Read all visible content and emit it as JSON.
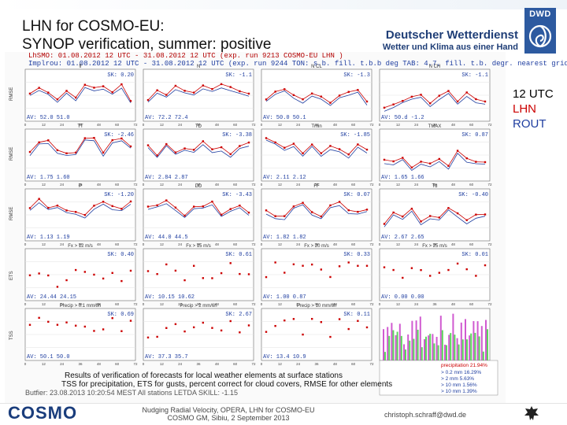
{
  "title": "LHN for COSMO-EU:\nSYNOP verification, summer:  positive",
  "brand": {
    "name": "Deutscher Wetterdienst",
    "tagline": "Wetter und Klima aus einer Hand",
    "logo_text": "DWD"
  },
  "legend": [
    {
      "text": "12 UTC",
      "color": "#000000"
    },
    {
      "text": "LHN",
      "color": "#cc0000"
    },
    {
      "text": "ROUT",
      "color": "#1f3ea0"
    }
  ],
  "run_lines": [
    "LhSMO: 01.08.2012 12 UTC - 31.08.2012 12 UTC (exp. run 9213   COSMO-EU LHN )",
    "Implrou: 01.08.2012 12 UTC - 31.08.2012 12 UTC (exp. run 9244 TON: s.b. fill. t.b.b deg TAB: 4.7, fill. t.b. degr. nearest gridpoint)"
  ],
  "panel_titles": [
    [
      "ff",
      "N",
      "N CL",
      "N CH"
    ],
    [
      "TT",
      "TD",
      "Tmin",
      "TMAX"
    ],
    [
      "P",
      "DD",
      "FF",
      "Td"
    ],
    [
      "Fx > 12 m/s",
      "Fx > 15 m/s",
      "Fx > 20 m/s",
      "Fx > 25 m/s"
    ],
    [
      "Precip > 0.1 mm/6h",
      "Precip > 2 mm/6h",
      "Precip > 10 mm/6h",
      ""
    ]
  ],
  "row_metric": [
    "RMSE",
    "RMSE",
    "RMSE",
    "ETS",
    "TSS"
  ],
  "panel_stats": [
    [
      [
        "AV: 52.0  51.0",
        "SK: 0.20"
      ],
      [
        "AV: 72.2  72.4",
        "SK: -1.1"
      ],
      [
        "AV: 50.0  50.1",
        "SK: -1.3"
      ],
      [
        "AV: 50.d  -1.2",
        "SK: -1.1"
      ]
    ],
    [
      [
        "AV: 1.75  1.60",
        "SK: -2.46"
      ],
      [
        "AV: 2.84  2.87",
        "SK: -3.38"
      ],
      [
        "AV: 2.11  2.12",
        "SK: -1.85"
      ],
      [
        "AV: 1.65  1.66",
        "SK: 0.87"
      ]
    ],
    [
      [
        "AV: 1.13  1.19",
        "SK: -1.20"
      ],
      [
        "AV: 44.0  44.5",
        "SK: -3.43"
      ],
      [
        "AV: 1.82  1.82",
        "SK: 0.07"
      ],
      [
        "AV: 2.67  2.65",
        "SK: -0.40"
      ]
    ],
    [
      [
        "AV: 24.44  24.15",
        "SK: 0.40"
      ],
      [
        "AV: 10.15  10.62",
        "SK: 0.61"
      ],
      [
        "AV: 1.00  0.87",
        "SK: 0.33"
      ],
      [
        "AV: 0.00  0.00",
        "SK: 0.01"
      ]
    ],
    [
      [
        "AV: 50.1  50.0",
        "SK: 0.69"
      ],
      [
        "AV: 37.3  35.7",
        "SK: 2.67"
      ],
      [
        "AV: 13.4  10.9",
        "SK: 0.11"
      ],
      [
        "",
        ""
      ]
    ]
  ],
  "xticks": [
    "0",
    "12",
    "24",
    "36",
    "48",
    "60",
    "72"
  ],
  "precip_box": {
    "title": "precipitation 21.94%",
    "rows": [
      "> 0.2 mm  16.29%",
      "> 2 mm  5.63%",
      "> 10 mm  1.56%",
      "> 10 mm  1.39%"
    ]
  },
  "footnotes": [
    "Results of verification of forecasts for local weather elements at surface stations",
    "TSS for precipitation, ETS for gusts, percent correct for cloud covers, RMSE for other elements",
    "Butfier: 23.08.2013 10:20:54 MEST                  All stations                 LETDA   SKILL: -1.15"
  ],
  "footer": {
    "center": [
      "Nudging Radial Velocity, OPERA, LHN for COSMO-EU",
      "COSMO GM, Sibiu, 2 September 2013"
    ],
    "email": "christoph.schraff@dwd.de",
    "logo_text": "COSMO"
  },
  "colors": {
    "lhn": "#cc0000",
    "rout": "#1f3ea0",
    "brand": "#1f3e77",
    "dwd_box": "#2d5aa0"
  }
}
